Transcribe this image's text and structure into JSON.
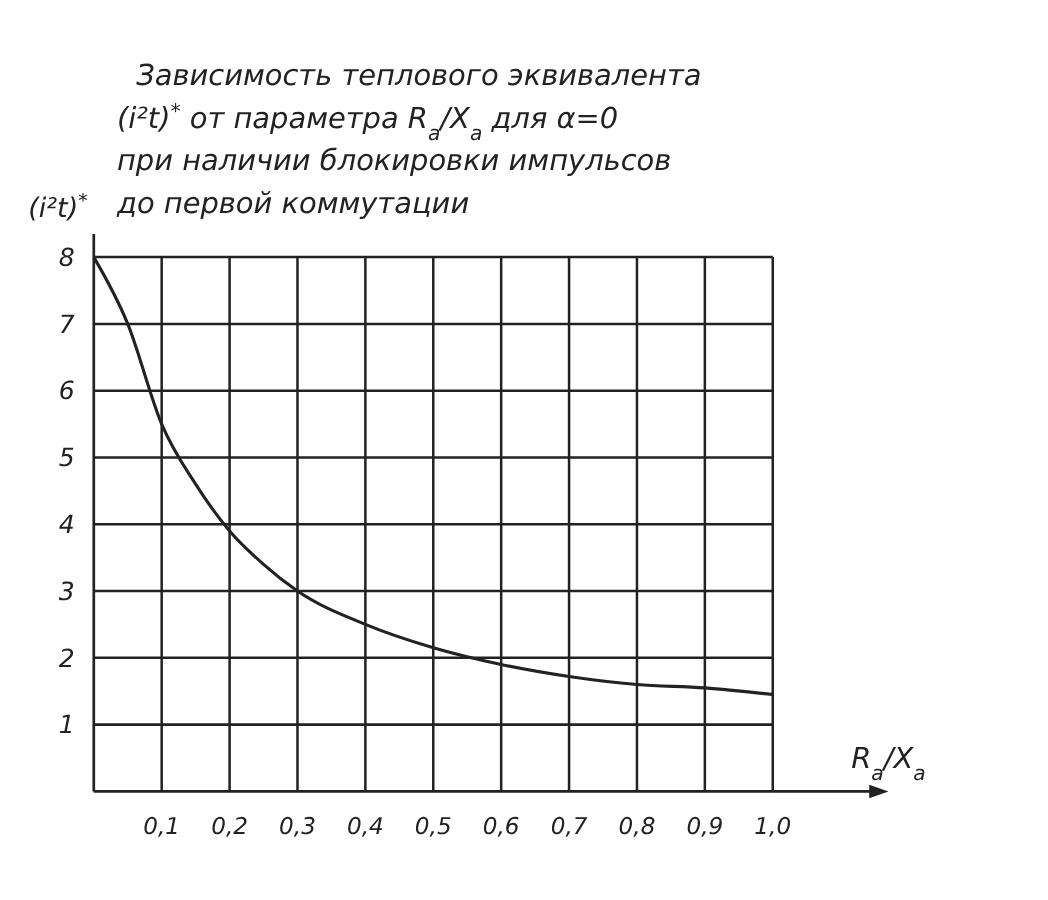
{
  "chart_data": {
    "type": "line",
    "title": "Зависимость теплового эквивалента\n(i²t)$^{*}$ от параметра R$_{a}$/X$_{a}$ для α=0\nпри наличии блокировки импульсов\nдо первой коммутации",
    "xlabel": "R$_{a}$/X$_{a}$",
    "ylabel": "(i²t)$^{*}$",
    "x": [
      0,
      0.05,
      0.1,
      0.15,
      0.2,
      0.25,
      0.3,
      0.4,
      0.5,
      0.6,
      0.7,
      0.8,
      0.9,
      1.0
    ],
    "series": [
      {
        "color": "#222222",
        "values": [
          8,
          7,
          5.5,
          4.6,
          3.9,
          3.4,
          3.0,
          2.5,
          2.15,
          1.9,
          1.72,
          1.6,
          1.55,
          1.45
        ]
      }
    ],
    "xlim": [
      0,
      1
    ],
    "ylim": [
      0,
      8
    ],
    "xticks": [
      {
        "value": 0.1,
        "label": "0,1"
      },
      {
        "value": 0.2,
        "label": "0,2"
      },
      {
        "value": 0.3,
        "label": "0,3"
      },
      {
        "value": 0.4,
        "label": "0,4"
      },
      {
        "value": 0.5,
        "label": "0,5"
      },
      {
        "value": 0.6,
        "label": "0,6"
      },
      {
        "value": 0.7,
        "label": "0,7"
      },
      {
        "value": 0.8,
        "label": "0,8"
      },
      {
        "value": 0.9,
        "label": "0,9"
      },
      {
        "value": 1.0,
        "label": "1,0"
      }
    ],
    "yticks": [
      1,
      2,
      3,
      4,
      5,
      6,
      7,
      8
    ],
    "grid": true,
    "marker": "none",
    "line_style": "solid"
  }
}
